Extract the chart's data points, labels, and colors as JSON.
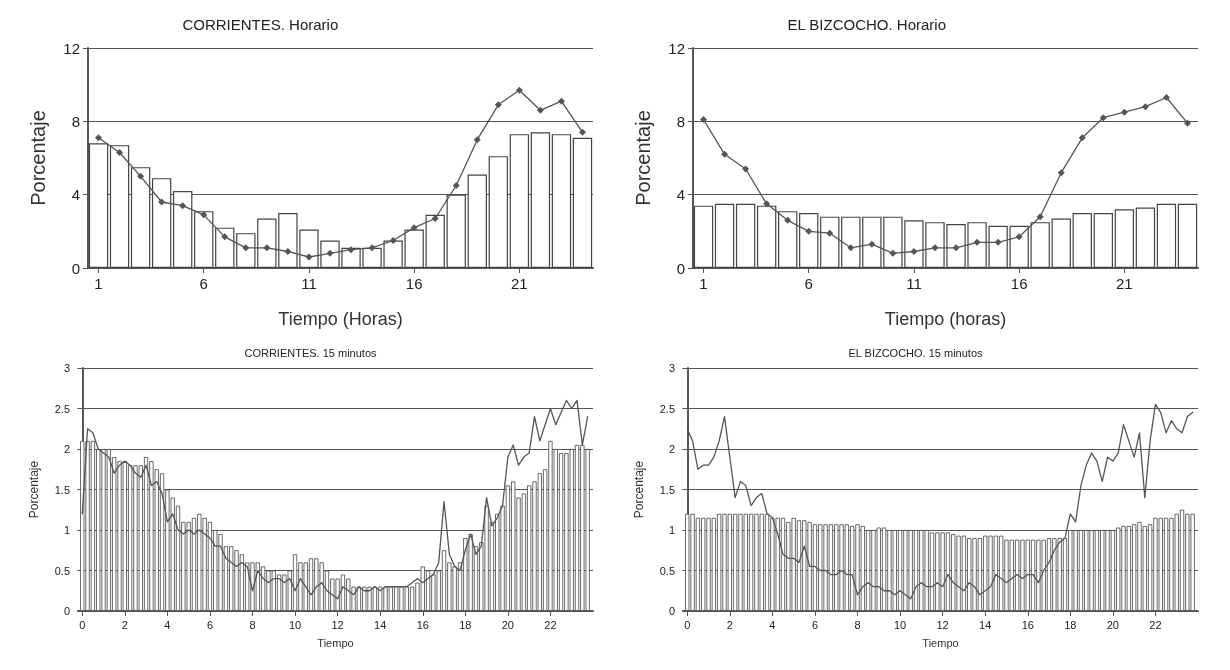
{
  "chart_data": [
    {
      "type": "bar",
      "title": "CORRIENTES. Horario",
      "xlabel": "Tiempo (Horas)",
      "ylabel": "Porcentaje",
      "x": [
        1,
        2,
        3,
        4,
        5,
        6,
        7,
        8,
        9,
        10,
        11,
        12,
        13,
        14,
        15,
        16,
        17,
        18,
        19,
        20,
        21,
        22,
        23,
        24
      ],
      "xlim": [
        0.5,
        24.5
      ],
      "xticks": [
        1,
        6,
        11,
        16,
        21
      ],
      "ylim": [
        0,
        12
      ],
      "yticks": [
        0,
        4,
        8,
        12
      ],
      "grid": "y",
      "marker": "diamond",
      "series": [
        {
          "color": "#ffffff",
          "values": [
            6.8,
            6.7,
            5.5,
            4.9,
            4.2,
            3.1,
            2.2,
            1.9,
            2.7,
            3.0,
            2.1,
            1.5,
            1.1,
            1.1,
            1.5,
            2.1,
            2.9,
            4.0,
            5.1,
            6.1,
            7.3,
            7.4,
            7.3,
            7.1
          ]
        },
        {
          "type": "line",
          "color": "#555555",
          "values": [
            7.1,
            6.3,
            5.0,
            3.6,
            3.4,
            2.9,
            1.7,
            1.1,
            1.1,
            0.9,
            0.6,
            0.8,
            1.0,
            1.1,
            1.5,
            2.2,
            2.7,
            4.5,
            7.0,
            8.9,
            9.7,
            8.6,
            9.1,
            7.4
          ]
        }
      ]
    },
    {
      "type": "bar",
      "title": "EL BIZCOCHO. Horario",
      "xlabel": "Tiempo (horas)",
      "ylabel": "Porcentaje",
      "x": [
        1,
        2,
        3,
        4,
        5,
        6,
        7,
        8,
        9,
        10,
        11,
        12,
        13,
        14,
        15,
        16,
        17,
        18,
        19,
        20,
        21,
        22,
        23,
        24
      ],
      "xlim": [
        0.5,
        24.5
      ],
      "xticks": [
        1,
        6,
        11,
        16,
        21
      ],
      "ylim": [
        0,
        12
      ],
      "yticks": [
        0,
        4,
        8,
        12
      ],
      "grid": "y",
      "marker": "diamond",
      "series": [
        {
          "color": "#ffffff",
          "values": [
            3.4,
            3.5,
            3.5,
            3.4,
            3.1,
            3.0,
            2.8,
            2.8,
            2.8,
            2.8,
            2.6,
            2.5,
            2.4,
            2.5,
            2.3,
            2.3,
            2.5,
            2.7,
            3.0,
            3.0,
            3.2,
            3.3,
            3.5,
            3.5
          ]
        },
        {
          "type": "line",
          "color": "#555555",
          "values": [
            8.1,
            6.2,
            5.4,
            3.5,
            2.6,
            2.0,
            1.9,
            1.1,
            1.3,
            0.8,
            0.9,
            1.1,
            1.1,
            1.4,
            1.4,
            1.7,
            2.8,
            5.2,
            7.1,
            8.2,
            8.5,
            8.8,
            9.3,
            7.9
          ]
        }
      ]
    },
    {
      "type": "bar",
      "title": "CORRIENTES. 15 minutos",
      "xlabel": "Tiempo",
      "ylabel": "Porcentaje",
      "x": [
        0,
        0.25,
        0.5,
        0.75,
        1,
        1.25,
        1.5,
        1.75,
        2,
        2.25,
        2.5,
        2.75,
        3,
        3.25,
        3.5,
        3.75,
        4,
        4.25,
        4.5,
        4.75,
        5,
        5.25,
        5.5,
        5.75,
        6,
        6.25,
        6.5,
        6.75,
        7,
        7.25,
        7.5,
        7.75,
        8,
        8.25,
        8.5,
        8.75,
        9,
        9.25,
        9.5,
        9.75,
        10,
        10.25,
        10.5,
        10.75,
        11,
        11.25,
        11.5,
        11.75,
        12,
        12.25,
        12.5,
        12.75,
        13,
        13.25,
        13.5,
        13.75,
        14,
        14.25,
        14.5,
        14.75,
        15,
        15.25,
        15.5,
        15.75,
        16,
        16.25,
        16.5,
        16.75,
        17,
        17.25,
        17.5,
        17.75,
        18,
        18.25,
        18.5,
        18.75,
        19,
        19.25,
        19.5,
        19.75,
        20,
        20.25,
        20.5,
        20.75,
        21,
        21.25,
        21.5,
        21.75,
        22,
        22.25,
        22.5,
        22.75,
        23,
        23.25,
        23.5,
        23.75
      ],
      "xlim": [
        -0.2,
        24
      ],
      "xticks": [
        0,
        2,
        4,
        6,
        8,
        10,
        12,
        14,
        16,
        18,
        20,
        22
      ],
      "ylim": [
        0,
        3
      ],
      "yticks": [
        0,
        0.5,
        1,
        1.5,
        2,
        2.5,
        3
      ],
      "grid": "y",
      "marker": "none",
      "series": [
        {
          "color": "#ffffff",
          "values": [
            2.1,
            2.1,
            2.1,
            2.0,
            2.0,
            2.0,
            1.9,
            1.85,
            1.85,
            1.8,
            1.8,
            1.8,
            1.9,
            1.85,
            1.75,
            1.7,
            1.5,
            1.4,
            1.3,
            1.1,
            1.1,
            1.15,
            1.2,
            1.15,
            1.1,
            1.0,
            0.95,
            0.8,
            0.8,
            0.75,
            0.7,
            0.6,
            0.6,
            0.6,
            0.55,
            0.5,
            0.5,
            0.45,
            0.45,
            0.5,
            0.7,
            0.6,
            0.6,
            0.65,
            0.65,
            0.6,
            0.5,
            0.4,
            0.4,
            0.45,
            0.4,
            0.3,
            0.3,
            0.3,
            0.3,
            0.3,
            0.3,
            0.3,
            0.3,
            0.3,
            0.3,
            0.3,
            0.3,
            0.35,
            0.55,
            0.5,
            0.45,
            0.5,
            0.75,
            0.6,
            0.55,
            0.6,
            0.9,
            0.95,
            0.8,
            0.85,
            1.3,
            1.1,
            1.2,
            1.3,
            1.55,
            1.6,
            1.4,
            1.45,
            1.55,
            1.6,
            1.7,
            1.75,
            2.1,
            2.0,
            1.95,
            1.95,
            2.0,
            2.05,
            2.05,
            2.0
          ]
        },
        {
          "type": "line",
          "color": "#555555",
          "values": [
            1.2,
            2.25,
            2.2,
            2.0,
            1.95,
            1.9,
            1.7,
            1.8,
            1.85,
            1.8,
            1.7,
            1.65,
            1.8,
            1.55,
            1.6,
            1.45,
            1.1,
            1.2,
            1.0,
            0.95,
            1.0,
            0.95,
            1.0,
            0.95,
            0.9,
            0.8,
            0.8,
            0.65,
            0.6,
            0.55,
            0.6,
            0.55,
            0.25,
            0.5,
            0.4,
            0.35,
            0.4,
            0.4,
            0.35,
            0.4,
            0.25,
            0.4,
            0.3,
            0.2,
            0.3,
            0.35,
            0.25,
            0.2,
            0.15,
            0.3,
            0.25,
            0.2,
            0.3,
            0.25,
            0.25,
            0.3,
            0.25,
            0.3,
            0.3,
            0.3,
            0.3,
            0.3,
            0.35,
            0.4,
            0.35,
            0.4,
            0.45,
            0.6,
            1.35,
            0.7,
            0.55,
            0.5,
            0.75,
            0.95,
            0.7,
            0.8,
            1.4,
            1.05,
            1.15,
            1.3,
            1.9,
            2.05,
            1.8,
            1.9,
            1.95,
            2.4,
            2.1,
            2.3,
            2.5,
            2.3,
            2.45,
            2.6,
            2.5,
            2.6,
            2.05,
            2.4
          ]
        }
      ]
    },
    {
      "type": "bar",
      "title": "EL BIZCOCHO. 15 minutos",
      "xlabel": "Tiempo",
      "ylabel": "Porcentaje",
      "x": [
        0,
        0.25,
        0.5,
        0.75,
        1,
        1.25,
        1.5,
        1.75,
        2,
        2.25,
        2.5,
        2.75,
        3,
        3.25,
        3.5,
        3.75,
        4,
        4.25,
        4.5,
        4.75,
        5,
        5.25,
        5.5,
        5.75,
        6,
        6.25,
        6.5,
        6.75,
        7,
        7.25,
        7.5,
        7.75,
        8,
        8.25,
        8.5,
        8.75,
        9,
        9.25,
        9.5,
        9.75,
        10,
        10.25,
        10.5,
        10.75,
        11,
        11.25,
        11.5,
        11.75,
        12,
        12.25,
        12.5,
        12.75,
        13,
        13.25,
        13.5,
        13.75,
        14,
        14.25,
        14.5,
        14.75,
        15,
        15.25,
        15.5,
        15.75,
        16,
        16.25,
        16.5,
        16.75,
        17,
        17.25,
        17.5,
        17.75,
        18,
        18.25,
        18.5,
        18.75,
        19,
        19.25,
        19.5,
        19.75,
        20,
        20.25,
        20.5,
        20.75,
        21,
        21.25,
        21.5,
        21.75,
        22,
        22.25,
        22.5,
        22.75,
        23,
        23.25,
        23.5,
        23.75
      ],
      "xlim": [
        -0.2,
        24
      ],
      "xticks": [
        0,
        2,
        4,
        6,
        8,
        10,
        12,
        14,
        16,
        18,
        20,
        22
      ],
      "ylim": [
        0,
        3
      ],
      "yticks": [
        0,
        0.5,
        1,
        1.5,
        2,
        2.5,
        3
      ],
      "grid": "y",
      "marker": "none",
      "series": [
        {
          "color": "#ffffff",
          "values": [
            1.2,
            1.2,
            1.15,
            1.15,
            1.15,
            1.15,
            1.2,
            1.2,
            1.2,
            1.2,
            1.2,
            1.2,
            1.2,
            1.2,
            1.2,
            1.2,
            1.15,
            1.15,
            1.15,
            1.1,
            1.15,
            1.12,
            1.12,
            1.1,
            1.07,
            1.07,
            1.07,
            1.07,
            1.07,
            1.07,
            1.07,
            1.05,
            1.07,
            1.05,
            1.0,
            1.0,
            1.03,
            1.03,
            1.0,
            1.0,
            1.0,
            1.0,
            1.0,
            1.0,
            1.0,
            1.0,
            0.97,
            0.97,
            0.97,
            0.97,
            0.95,
            0.93,
            0.93,
            0.9,
            0.9,
            0.9,
            0.93,
            0.93,
            0.93,
            0.93,
            0.88,
            0.88,
            0.88,
            0.88,
            0.88,
            0.88,
            0.88,
            0.88,
            0.9,
            0.9,
            0.9,
            0.9,
            1.0,
            1.0,
            1.0,
            1.0,
            1.0,
            1.0,
            1.0,
            1.0,
            1.0,
            1.03,
            1.05,
            1.05,
            1.07,
            1.1,
            1.05,
            1.07,
            1.15,
            1.15,
            1.15,
            1.15,
            1.2,
            1.25,
            1.2,
            1.2
          ]
        },
        {
          "type": "line",
          "color": "#555555",
          "values": [
            2.25,
            2.1,
            1.75,
            1.8,
            1.8,
            1.9,
            2.1,
            2.4,
            1.9,
            1.4,
            1.6,
            1.55,
            1.3,
            1.4,
            1.45,
            1.2,
            1.15,
            0.95,
            0.7,
            0.65,
            0.65,
            0.6,
            0.8,
            0.55,
            0.55,
            0.5,
            0.5,
            0.45,
            0.45,
            0.5,
            0.45,
            0.45,
            0.2,
            0.3,
            0.35,
            0.3,
            0.3,
            0.25,
            0.25,
            0.2,
            0.25,
            0.2,
            0.15,
            0.3,
            0.35,
            0.3,
            0.3,
            0.35,
            0.3,
            0.45,
            0.35,
            0.3,
            0.25,
            0.35,
            0.3,
            0.2,
            0.25,
            0.3,
            0.45,
            0.4,
            0.35,
            0.4,
            0.45,
            0.4,
            0.45,
            0.45,
            0.35,
            0.5,
            0.6,
            0.75,
            0.85,
            0.9,
            1.2,
            1.1,
            1.55,
            1.8,
            1.95,
            1.85,
            1.6,
            1.9,
            1.85,
            1.95,
            2.3,
            2.1,
            1.9,
            2.2,
            1.4,
            2.1,
            2.55,
            2.45,
            2.2,
            2.35,
            2.25,
            2.2,
            2.4,
            2.45
          ]
        }
      ]
    }
  ]
}
